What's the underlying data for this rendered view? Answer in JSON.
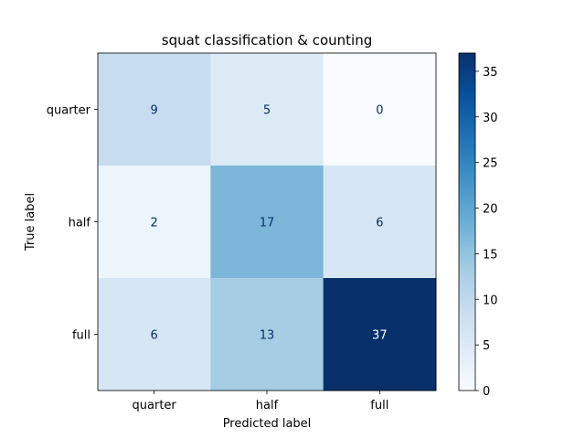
{
  "chart_data": {
    "type": "heatmap",
    "title": "squat classification & counting",
    "xlabel": "Predicted label",
    "ylabel": "True label",
    "x_categories": [
      "quarter",
      "half",
      "full"
    ],
    "y_categories": [
      "quarter",
      "half",
      "full"
    ],
    "values": [
      [
        9,
        5,
        0
      ],
      [
        2,
        17,
        6
      ],
      [
        6,
        13,
        37
      ]
    ],
    "colormap": "Blues",
    "vmin": 0,
    "vmax": 37,
    "colorbar_ticks": [
      0,
      5,
      10,
      15,
      20,
      25,
      30,
      35
    ],
    "grid": false
  }
}
